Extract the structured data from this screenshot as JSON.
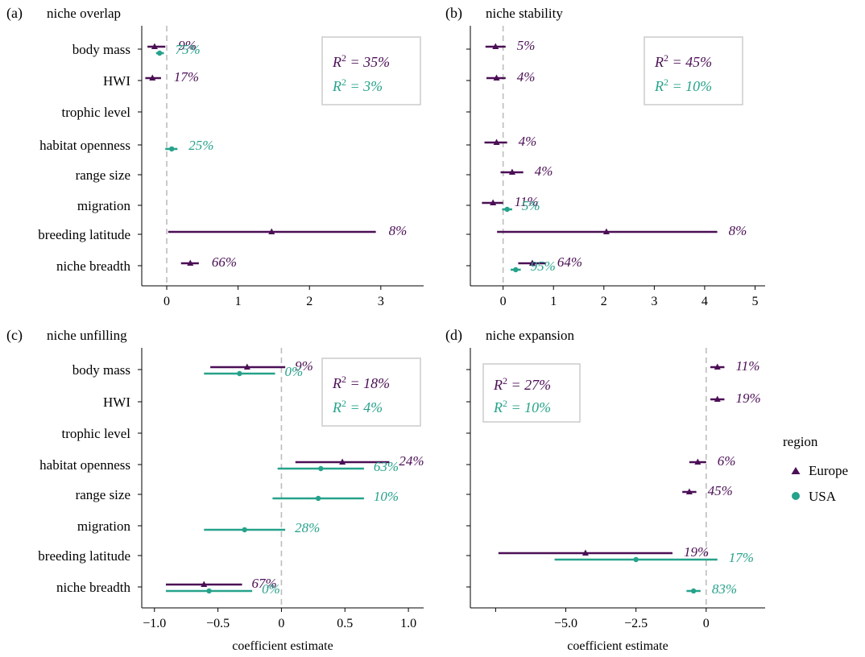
{
  "colors": {
    "europe": "#4b0f55",
    "usa": "#26a28b",
    "zero_line": "#bdbdbd",
    "r2_box": "#cfcfcf"
  },
  "legend": {
    "title": "region",
    "items": [
      {
        "label": "Europe",
        "key": "europe",
        "shape": "triangle"
      },
      {
        "label": "USA",
        "key": "usa",
        "shape": "circle"
      }
    ]
  },
  "x_axis_label": "coefficient estimate",
  "chart_data": [
    {
      "letter": "(a)",
      "title": "niche overlap",
      "type": "forest",
      "show_category_labels": true,
      "xlim": [
        -0.35,
        3.6
      ],
      "xticks": [
        0,
        1,
        2,
        3
      ],
      "xtick_labels": [
        "0",
        "1",
        "2",
        "3"
      ],
      "xlabel": "",
      "r2": {
        "europe": "= 35%",
        "usa": "= 3%"
      },
      "categories": [
        "body mass",
        "HWI",
        "trophic level",
        "habitat openness",
        "range size",
        "migration",
        "breeding latitude",
        "niche breadth"
      ],
      "series": [
        {
          "key": "europe",
          "points": [
            {
              "category": "body mass",
              "est": -0.17,
              "lo": -0.27,
              "hi": -0.02,
              "pct": "9%"
            },
            {
              "category": "HWI",
              "est": -0.2,
              "lo": -0.3,
              "hi": -0.08,
              "pct": "17%"
            },
            {
              "category": "breeding latitude",
              "est": 1.47,
              "lo": 0.02,
              "hi": 2.93,
              "pct": "8%"
            },
            {
              "category": "niche breadth",
              "est": 0.33,
              "lo": 0.2,
              "hi": 0.45,
              "pct": "66%"
            }
          ]
        },
        {
          "key": "usa",
          "points": [
            {
              "category": "body mass",
              "est": -0.1,
              "lo": -0.15,
              "hi": -0.04,
              "pct": "75%"
            },
            {
              "category": "habitat openness",
              "est": 0.07,
              "lo": -0.02,
              "hi": 0.15,
              "pct": "25%"
            }
          ]
        }
      ]
    },
    {
      "letter": "(b)",
      "title": "niche stability",
      "type": "forest",
      "show_category_labels": false,
      "xlim": [
        -0.65,
        5.2
      ],
      "xticks": [
        0,
        1,
        2,
        3,
        4,
        5
      ],
      "xtick_labels": [
        "0",
        "1",
        "2",
        "3",
        "4",
        "5"
      ],
      "xlabel": "",
      "r2": {
        "europe": "= 45%",
        "usa": "= 10%"
      },
      "categories": [
        "body mass",
        "HWI",
        "trophic level",
        "habitat openness",
        "range size",
        "migration",
        "breeding latitude",
        "niche breadth"
      ],
      "series": [
        {
          "key": "europe",
          "points": [
            {
              "category": "body mass",
              "est": -0.15,
              "lo": -0.35,
              "hi": 0.05,
              "pct": "5%"
            },
            {
              "category": "HWI",
              "est": -0.13,
              "lo": -0.33,
              "hi": 0.05,
              "pct": "4%"
            },
            {
              "category": "habitat openness",
              "est": -0.13,
              "lo": -0.37,
              "hi": 0.08,
              "pct": "4%"
            },
            {
              "category": "range size",
              "est": 0.18,
              "lo": -0.05,
              "hi": 0.4,
              "pct": "4%"
            },
            {
              "category": "migration",
              "est": -0.2,
              "lo": -0.42,
              "hi": 0.0,
              "pct": "11%"
            },
            {
              "category": "breeding latitude",
              "est": 2.05,
              "lo": -0.12,
              "hi": 4.25,
              "pct": "8%"
            },
            {
              "category": "niche breadth",
              "est": 0.58,
              "lo": 0.3,
              "hi": 0.85,
              "pct": "64%"
            }
          ]
        },
        {
          "key": "usa",
          "points": [
            {
              "category": "migration",
              "est": 0.08,
              "lo": -0.02,
              "hi": 0.18,
              "pct": "5%"
            },
            {
              "category": "niche breadth",
              "est": 0.25,
              "lo": 0.15,
              "hi": 0.35,
              "pct": "95%"
            }
          ]
        }
      ]
    },
    {
      "letter": "(c)",
      "title": "niche unfilling",
      "type": "forest",
      "show_category_labels": true,
      "xlim": [
        -1.1,
        1.12
      ],
      "xticks": [
        -1,
        -0.5,
        0,
        0.5,
        1
      ],
      "xtick_labels": [
        "−1.0",
        "−0.5",
        "0",
        "0.5",
        "1.0"
      ],
      "xlabel": "coefficient estimate",
      "r2": {
        "europe": "= 18%",
        "usa": "= 4%"
      },
      "categories": [
        "body mass",
        "HWI",
        "trophic level",
        "habitat openness",
        "range size",
        "migration",
        "breeding latitude",
        "niche breadth"
      ],
      "series": [
        {
          "key": "europe",
          "points": [
            {
              "category": "body mass",
              "est": -0.27,
              "lo": -0.56,
              "hi": 0.03,
              "pct": "9%"
            },
            {
              "category": "habitat openness",
              "est": 0.48,
              "lo": 0.11,
              "hi": 0.85,
              "pct": "24%"
            },
            {
              "category": "niche breadth",
              "est": -0.61,
              "lo": -0.91,
              "hi": -0.31,
              "pct": "67%"
            }
          ]
        },
        {
          "key": "usa",
          "points": [
            {
              "category": "body mass",
              "est": -0.33,
              "lo": -0.61,
              "hi": -0.05,
              "pct": "0%"
            },
            {
              "category": "habitat openness",
              "est": 0.31,
              "lo": -0.03,
              "hi": 0.65,
              "pct": "63%"
            },
            {
              "category": "range size",
              "est": 0.29,
              "lo": -0.07,
              "hi": 0.65,
              "pct": "10%"
            },
            {
              "category": "migration",
              "est": -0.29,
              "lo": -0.61,
              "hi": 0.03,
              "pct": "28%"
            },
            {
              "category": "niche breadth",
              "est": -0.57,
              "lo": -0.91,
              "hi": -0.23,
              "pct": "0%"
            }
          ]
        }
      ]
    },
    {
      "letter": "(d)",
      "title": "niche expansion",
      "type": "forest",
      "show_category_labels": false,
      "xlim": [
        -8.4,
        2.1
      ],
      "xticks": [
        -7.5,
        -5,
        -2.5,
        0
      ],
      "xtick_labels": [
        "",
        "−5.0",
        "−2.5",
        "0"
      ],
      "xlabel": "coefficient estimate",
      "r2": {
        "europe": "= 27%",
        "usa": "= 10%"
      },
      "categories": [
        "body mass",
        "HWI",
        "trophic level",
        "habitat openness",
        "range size",
        "migration",
        "breeding latitude",
        "niche breadth"
      ],
      "series": [
        {
          "key": "europe",
          "points": [
            {
              "category": "body mass",
              "est": 0.4,
              "lo": 0.15,
              "hi": 0.65,
              "pct": "11%"
            },
            {
              "category": "HWI",
              "est": 0.4,
              "lo": 0.15,
              "hi": 0.65,
              "pct": "19%"
            },
            {
              "category": "habitat openness",
              "est": -0.3,
              "lo": -0.6,
              "hi": 0.0,
              "pct": "6%"
            },
            {
              "category": "range size",
              "est": -0.6,
              "lo": -0.85,
              "hi": -0.35,
              "pct": "45%"
            },
            {
              "category": "breeding latitude",
              "est": -4.3,
              "lo": -7.4,
              "hi": -1.2,
              "pct": "19%"
            }
          ]
        },
        {
          "key": "usa",
          "points": [
            {
              "category": "breeding latitude",
              "est": -2.5,
              "lo": -5.4,
              "hi": 0.4,
              "pct": "17%"
            },
            {
              "category": "niche breadth",
              "est": -0.45,
              "lo": -0.7,
              "hi": -0.2,
              "pct": "83%"
            }
          ]
        }
      ]
    }
  ]
}
